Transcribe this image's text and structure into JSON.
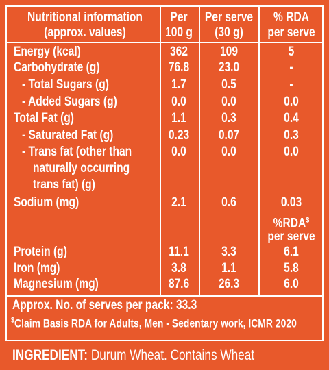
{
  "table": {
    "header": [
      [
        "Nutritional information",
        "(approx. values)"
      ],
      [
        "Per",
        "100 g"
      ],
      [
        "Per serve",
        "(30 g)"
      ],
      [
        "% RDA",
        "per serve"
      ]
    ],
    "rows": [
      {
        "label": [
          "Energy (kcal)"
        ],
        "per_100g": "362",
        "per_serve": "109",
        "rda": "5"
      },
      {
        "label": [
          "Carbohydrate (g)"
        ],
        "per_100g": "76.8",
        "per_serve": "23.0",
        "rda": "-"
      },
      {
        "label": [
          "- Total Sugars (g)"
        ],
        "per_100g": "1.7",
        "per_serve": "0.5",
        "rda": "-"
      },
      {
        "label": [
          "- Added Sugars (g)"
        ],
        "per_100g": "0.0",
        "per_serve": "0.0",
        "rda": "0.0"
      },
      {
        "label": [
          "Total Fat (g)"
        ],
        "per_100g": "1.1",
        "per_serve": "0.3",
        "rda": "0.4"
      },
      {
        "label": [
          "- Saturated Fat (g)"
        ],
        "per_100g": "0.23",
        "per_serve": "0.07",
        "rda": "0.3"
      },
      {
        "label": [
          "- Trans fat (other than",
          "naturally occurring",
          "trans fat) (g)"
        ],
        "per_100g": "0.0",
        "per_serve": "0.0",
        "rda": "0.0"
      },
      {
        "label": [
          "Sodium (mg)"
        ],
        "per_100g": "2.1",
        "per_serve": "0.6",
        "rda": "0.03"
      },
      {
        "label": [
          "Protein (g)"
        ],
        "per_100g": "11.1",
        "per_serve": "3.3",
        "rda": "6.1"
      },
      {
        "label": [
          "Iron (mg)"
        ],
        "per_100g": "3.8",
        "per_serve": "1.1",
        "rda": "5.8"
      },
      {
        "label": [
          "Magnesium (mg)"
        ],
        "per_100g": "87.6",
        "per_serve": "26.3",
        "rda": "6.0"
      }
    ],
    "rda_subheader": {
      "text": "%RDA",
      "mark": "$",
      "line2": "per serve"
    },
    "footer": {
      "serves": "Approx. No. of serves per pack: 33.3",
      "note_mark": "$",
      "note": "Claim Basis RDA for Adults, Men - Sedentary work, ICMR 2020"
    }
  },
  "ingredient": {
    "label": "INGREDIENT:",
    "text": " Durum Wheat. Contains Wheat"
  }
}
